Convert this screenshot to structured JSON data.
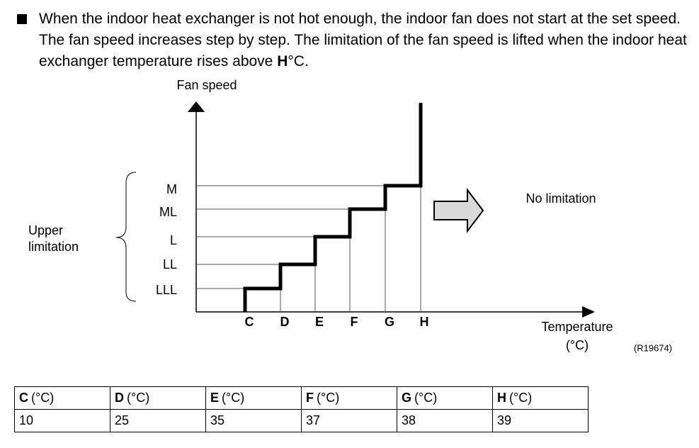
{
  "paragraph": {
    "text": "When the indoor heat exchanger is not hot enough, the indoor fan does not start at the set speed. The fan speed increases step by step. The limitation of the fan speed is lifted when the indoor heat exchanger temperature rises above",
    "emphasis": "H",
    "suffix": "°C."
  },
  "diagram": {
    "y_label": "Fan speed",
    "levels": [
      "M",
      "ML",
      "L",
      "LL",
      "LLL"
    ],
    "brace_label": [
      "Upper",
      "limitation"
    ],
    "x_points": [
      "C",
      "D",
      "E",
      "F",
      "G",
      "H"
    ],
    "no_limitation": "No limitation",
    "x_label": "Temperature",
    "x_unit": "(°C)",
    "ref": "(R19674)"
  },
  "table": {
    "headers": [
      {
        "letter": "C",
        "unit": "(°C)"
      },
      {
        "letter": "D",
        "unit": "(°C)"
      },
      {
        "letter": "E",
        "unit": "(°C)"
      },
      {
        "letter": "F",
        "unit": "(°C)"
      },
      {
        "letter": "G",
        "unit": "(°C)"
      },
      {
        "letter": "H",
        "unit": "(°C)"
      }
    ],
    "rows": [
      [
        10,
        25,
        35,
        37,
        38,
        39
      ]
    ]
  }
}
